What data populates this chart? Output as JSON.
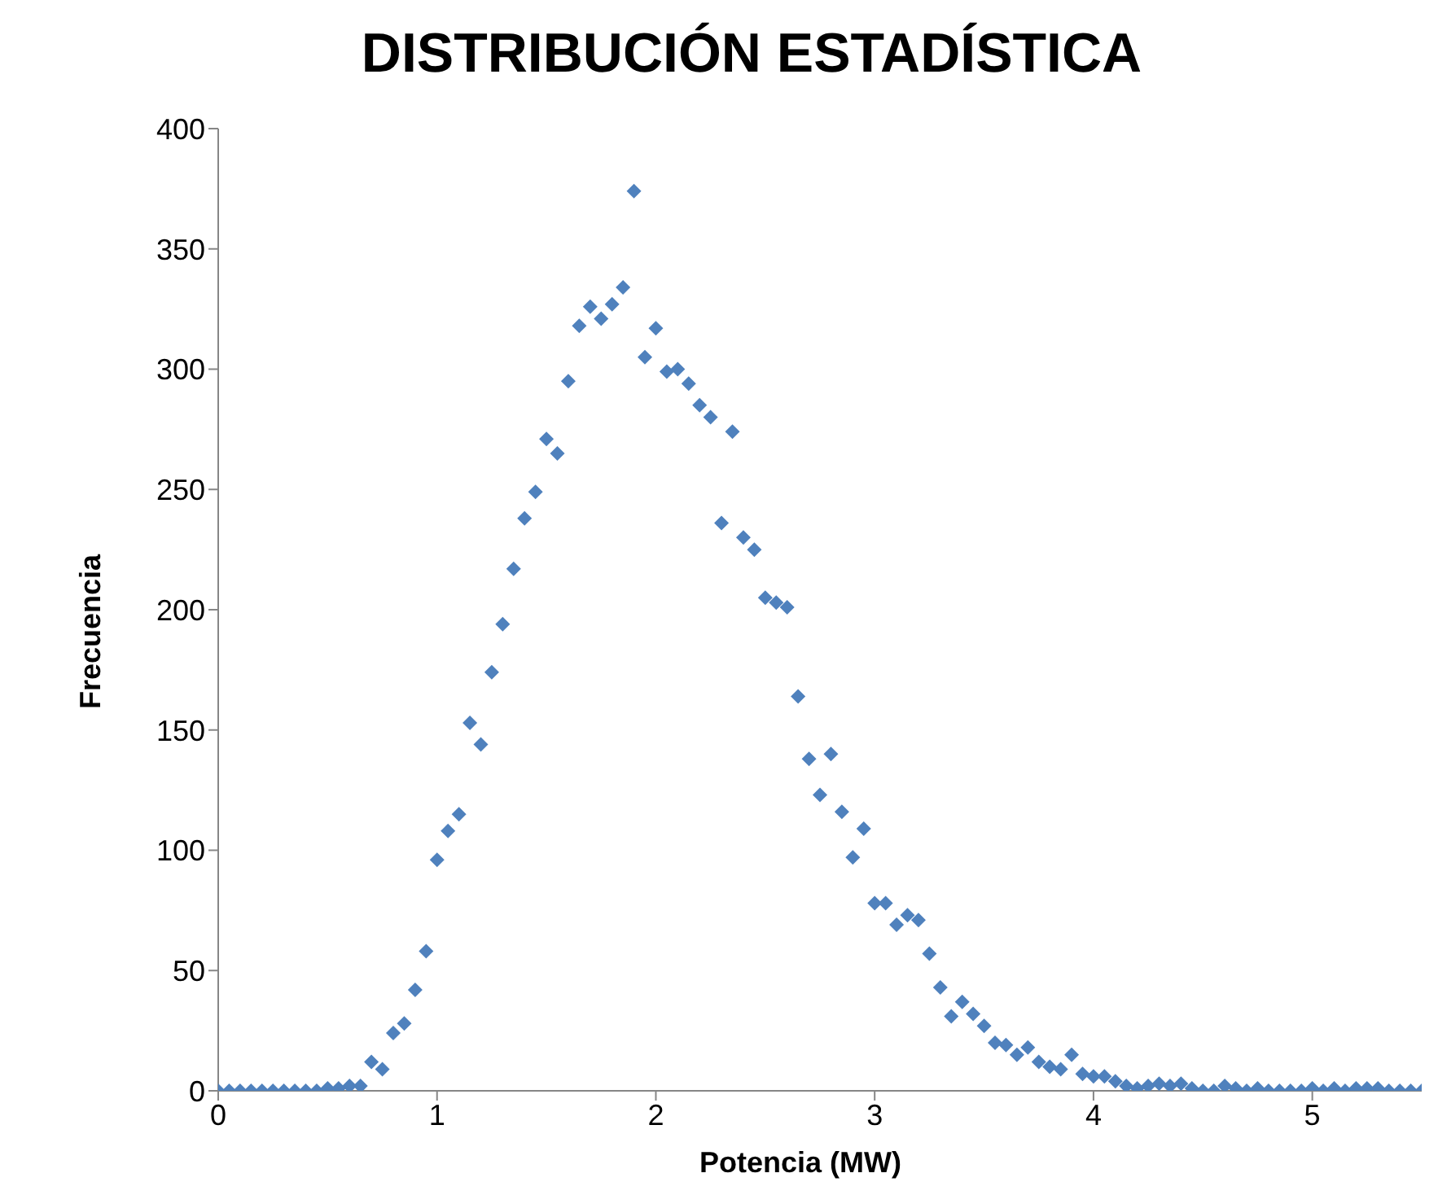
{
  "chart_data": {
    "type": "scatter",
    "title": "DISTRIBUCIÓN ESTADÍSTICA",
    "xlabel": "Potencia (MW)",
    "ylabel": "Frecuencia",
    "x": [
      0,
      0.05,
      0.1,
      0.15,
      0.2,
      0.25,
      0.3,
      0.35,
      0.4,
      0.45,
      0.5,
      0.55,
      0.6,
      0.65,
      0.7,
      0.75,
      0.8,
      0.85,
      0.9,
      0.95,
      1,
      1.05,
      1.1,
      1.15,
      1.2,
      1.25,
      1.3,
      1.35,
      1.4,
      1.45,
      1.5,
      1.55,
      1.6,
      1.65,
      1.7,
      1.75,
      1.8,
      1.85,
      1.9,
      1.95,
      2,
      2.05,
      2.1,
      2.15,
      2.2,
      2.25,
      2.3,
      2.35,
      2.4,
      2.45,
      2.5,
      2.55,
      2.6,
      2.65,
      2.7,
      2.75,
      2.8,
      2.85,
      2.9,
      2.95,
      3,
      3.05,
      3.1,
      3.15,
      3.2,
      3.25,
      3.3,
      3.35,
      3.4,
      3.45,
      3.5,
      3.55,
      3.6,
      3.65,
      3.7,
      3.75,
      3.8,
      3.85,
      3.9,
      3.95,
      4,
      4.05,
      4.1,
      4.15,
      4.2,
      4.25,
      4.3,
      4.35,
      4.4,
      4.45,
      4.5,
      4.55,
      4.6,
      4.65,
      4.7,
      4.75,
      4.8,
      4.85,
      4.9,
      4.95,
      5,
      5.05,
      5.1,
      5.15,
      5.2,
      5.25,
      5.3,
      5.35,
      5.4,
      5.45,
      5.5
    ],
    "series": [
      {
        "color": "#4f81bd",
        "values": [
          0,
          0,
          0,
          0,
          0,
          0,
          0,
          0,
          0,
          0,
          1,
          1,
          2,
          2,
          12,
          9,
          24,
          28,
          42,
          58,
          96,
          108,
          115,
          153,
          144,
          174,
          194,
          217,
          238,
          249,
          271,
          265,
          295,
          318,
          326,
          321,
          327,
          334,
          374,
          305,
          317,
          299,
          300,
          294,
          285,
          280,
          236,
          274,
          230,
          225,
          205,
          203,
          201,
          164,
          138,
          123,
          140,
          116,
          97,
          109,
          78,
          78,
          69,
          73,
          71,
          57,
          43,
          31,
          37,
          32,
          27,
          20,
          19,
          15,
          18,
          12,
          10,
          9,
          15,
          7,
          6,
          6,
          4,
          2,
          1,
          2,
          3,
          2,
          3,
          1,
          0,
          0,
          2,
          1,
          0,
          1,
          0,
          0,
          0,
          0,
          1,
          0,
          1,
          0,
          1,
          1,
          1,
          0,
          0,
          0,
          0
        ]
      }
    ],
    "xlim": [
      0,
      5.5
    ],
    "xticks": [
      0,
      1,
      2,
      3,
      4,
      5
    ],
    "ylim": [
      0,
      400
    ],
    "yticks": [
      0,
      50,
      100,
      150,
      200,
      250,
      300,
      350,
      400
    ],
    "grid": false,
    "legend": false,
    "marker": "diamond"
  }
}
